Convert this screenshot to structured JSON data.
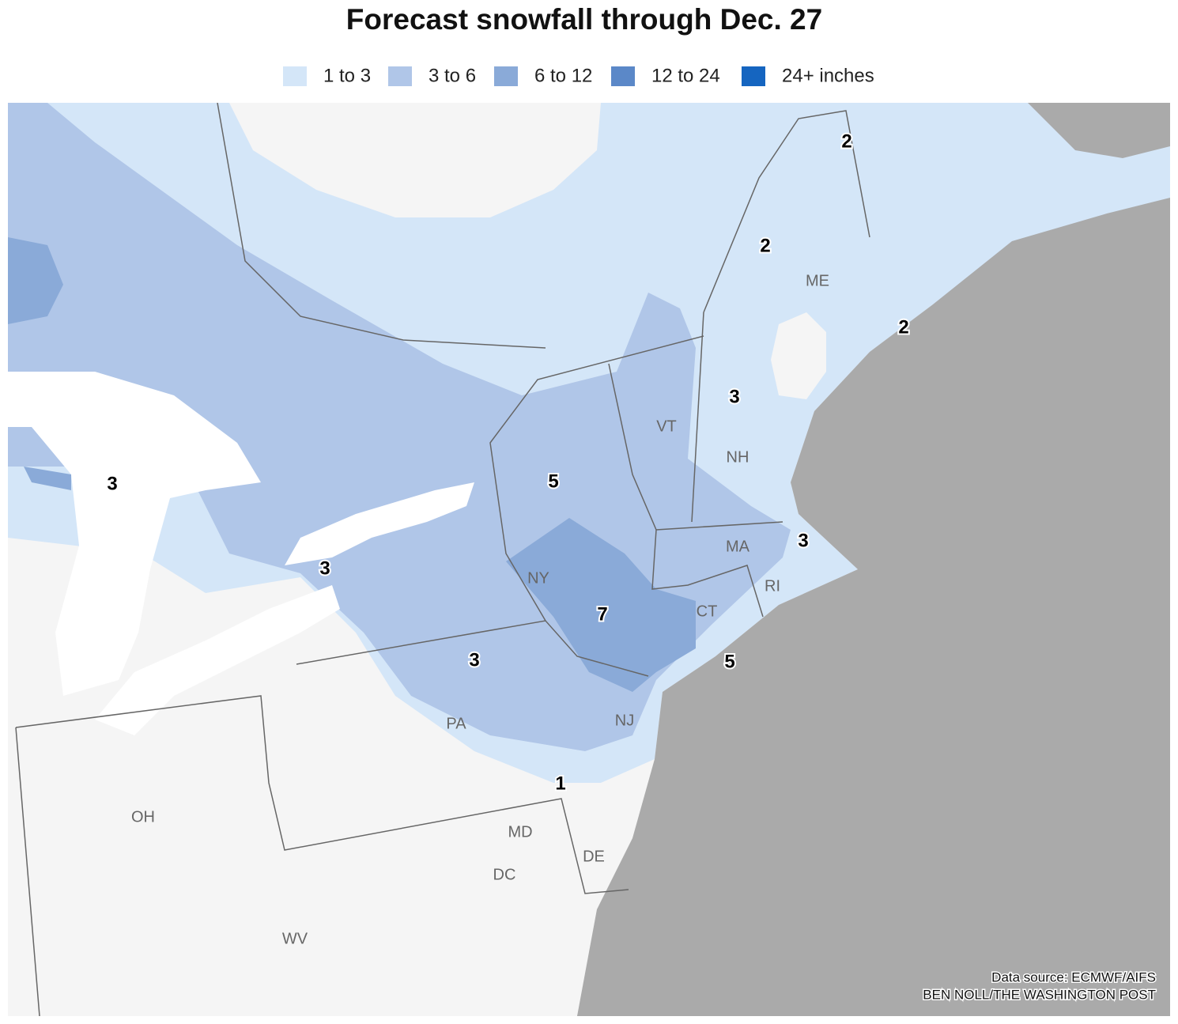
{
  "title": "Forecast snowfall through Dec. 27",
  "legend": [
    {
      "label": "1 to 3",
      "color": "#d4e6f8"
    },
    {
      "label": "3 to 6",
      "color": "#b0c6e8"
    },
    {
      "label": "6 to 12",
      "color": "#8aaad8"
    },
    {
      "label": "12 to 24",
      "color": "#5b88c8"
    },
    {
      "label": "24+ inches",
      "color": "#1565c0"
    }
  ],
  "state_labels": [
    "ME",
    "NH",
    "VT",
    "MA",
    "RI",
    "CT",
    "NY",
    "NJ",
    "PA",
    "OH",
    "MD",
    "DE",
    "DC",
    "WV"
  ],
  "snowfall_labels": [
    2,
    2,
    2,
    3,
    3,
    5,
    3,
    3,
    7,
    3,
    5,
    1
  ],
  "source": "Data source: ECMWF/AIFS",
  "credit": "BEN NOLL/THE WASHINGTON POST"
}
